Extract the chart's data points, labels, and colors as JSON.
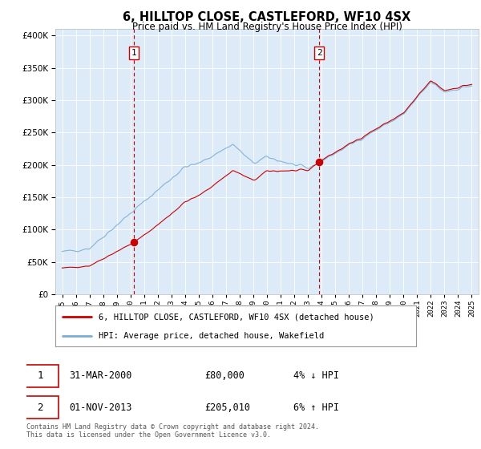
{
  "title": "6, HILLTOP CLOSE, CASTLEFORD, WF10 4SX",
  "subtitle": "Price paid vs. HM Land Registry's House Price Index (HPI)",
  "legend_line1": "6, HILLTOP CLOSE, CASTLEFORD, WF10 4SX (detached house)",
  "legend_line2": "HPI: Average price, detached house, Wakefield",
  "footnote": "Contains HM Land Registry data © Crown copyright and database right 2024.\nThis data is licensed under the Open Government Licence v3.0.",
  "sale1_year": 2000.25,
  "sale1_price": 80000,
  "sale1_date": "31-MAR-2000",
  "sale1_pct": "4% ↓ HPI",
  "sale2_year": 2013.83,
  "sale2_price": 205010,
  "sale2_date": "01-NOV-2013",
  "sale2_pct": "6% ↑ HPI",
  "hpi_color": "#7aaed4",
  "property_color": "#cc0000",
  "bg_color": "#ddeaf7",
  "ylim_max": 410000,
  "xlim_start": 1994.5,
  "xlim_end": 2025.5
}
